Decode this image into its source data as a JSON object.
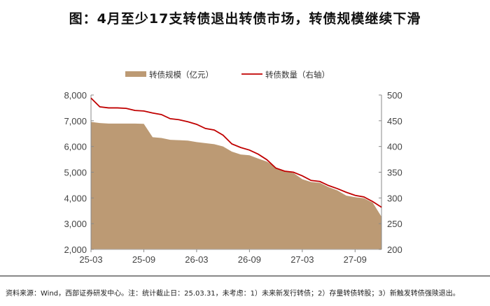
{
  "chart_data": {
    "type": "area+line",
    "title": "图：4月至少17支转债退出转债市场，转债规模继续下滑",
    "x": [
      "25-03",
      "25-04",
      "25-05",
      "25-06",
      "25-07",
      "25-08",
      "25-09",
      "25-10",
      "25-11",
      "25-12",
      "26-01",
      "26-02",
      "26-03",
      "26-04",
      "26-05",
      "26-06",
      "26-07",
      "26-08",
      "26-09",
      "26-10",
      "26-11",
      "26-12",
      "27-01",
      "27-02",
      "27-03",
      "27-04",
      "27-05",
      "27-06",
      "27-07",
      "27-08",
      "27-09",
      "27-10",
      "27-11",
      "27-12"
    ],
    "xticks": [
      "25-03",
      "25-09",
      "26-03",
      "26-09",
      "27-03",
      "27-09"
    ],
    "series": [
      {
        "name": "转债规模（亿元）",
        "type": "area",
        "axis": "left",
        "color": "#BC9A74",
        "values": [
          6955,
          6910,
          6890,
          6890,
          6890,
          6890,
          6880,
          6360,
          6330,
          6260,
          6245,
          6230,
          6170,
          6130,
          6090,
          6000,
          5800,
          5690,
          5660,
          5530,
          5410,
          5180,
          5045,
          4970,
          4730,
          4620,
          4590,
          4420,
          4290,
          4090,
          4030,
          3990,
          3820,
          3270
        ]
      },
      {
        "name": "转债数量（右轴）",
        "type": "line",
        "axis": "right",
        "color": "#C00000",
        "values": [
          494,
          477,
          475,
          475,
          474,
          470,
          469,
          465,
          462,
          454,
          452,
          448,
          443,
          435,
          432,
          422,
          405,
          398,
          393,
          385,
          374,
          358,
          352,
          350,
          343,
          334,
          332,
          324,
          318,
          311,
          305,
          302,
          293,
          282
        ]
      }
    ],
    "ylim_left": [
      2000,
      8000
    ],
    "yticks_left": [
      "2,000",
      "3,000",
      "4,000",
      "5,000",
      "6,000",
      "7,000",
      "8,000"
    ],
    "ylim_right": [
      200,
      500
    ],
    "yticks_right": [
      "200",
      "250",
      "300",
      "350",
      "400",
      "450",
      "500"
    ],
    "legend": "top",
    "grid": false
  },
  "footnote": "资料来源：Wind，西部证券研发中心。注：统计截止日：25.03.31，未考虑：1）未来新发行转债；2）存量转债转股；3）新触发转债强赎退出。"
}
